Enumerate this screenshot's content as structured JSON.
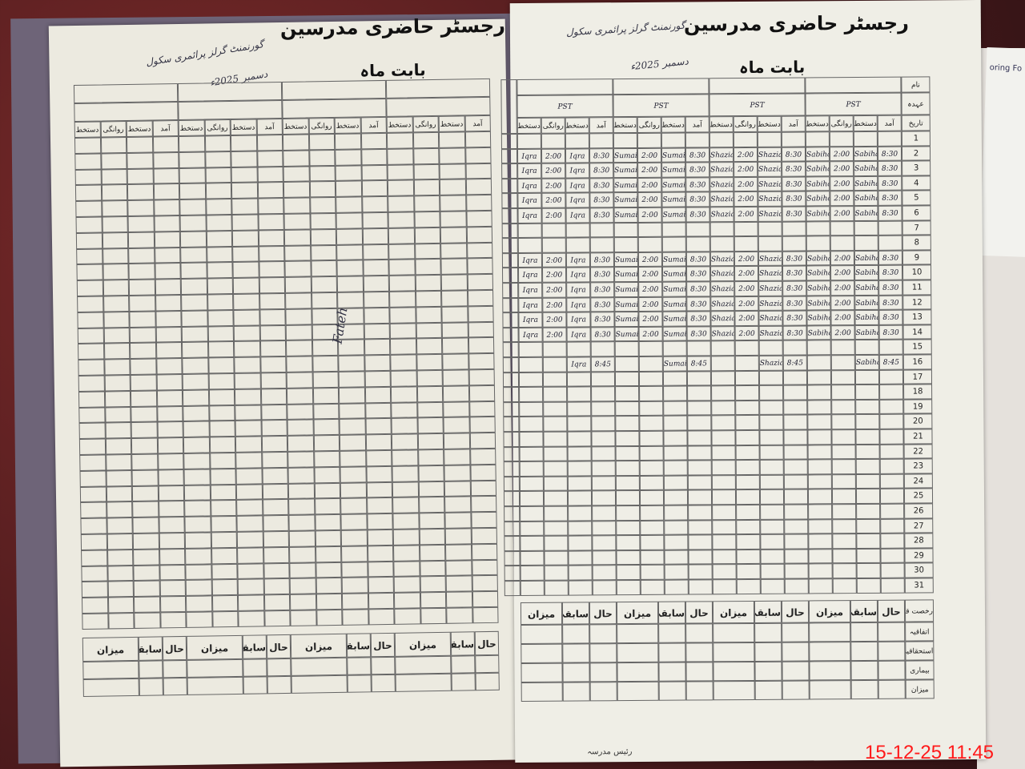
{
  "register_title": "رجسٹر حاضری مدرسین",
  "month_label": "بابت ماہ",
  "school_name_handwritten": "گورنمنٹ گرلز پرائمری سکول",
  "month_handwritten": "دسمبر 2025ء",
  "row_labels": {
    "name": "نام",
    "designation": "عہدہ",
    "date": "تاریخ"
  },
  "sub_headers": [
    "آمد",
    "دستخط",
    "روانگی",
    "دستخط"
  ],
  "teachers": [
    {
      "designation": "PST",
      "sig": "Sabiha"
    },
    {
      "designation": "PST",
      "sig": "Shazia"
    },
    {
      "designation": "PST",
      "sig": "Sumaira"
    },
    {
      "designation": "PST",
      "sig": "Iqra"
    }
  ],
  "days": [
    "1",
    "2",
    "3",
    "4",
    "5",
    "6",
    "7",
    "8",
    "9",
    "10",
    "11",
    "12",
    "13",
    "14",
    "15",
    "16",
    "17",
    "18",
    "19",
    "20",
    "21",
    "22",
    "23",
    "24",
    "25",
    "26",
    "27",
    "28",
    "29",
    "30",
    "31"
  ],
  "entries": {
    "arrival": "8:30",
    "departure": "2:00",
    "late_arrival": "8:45",
    "attended_days": [
      2,
      3,
      4,
      5,
      6,
      9,
      10,
      11,
      12,
      13,
      14
    ],
    "half_day": 16
  },
  "summary": {
    "leave_type_label": "رخصت قسم",
    "leave_types": [
      "اتفاقیہ",
      "استحقاقیہ",
      "بیماری",
      "میزان"
    ],
    "columns": [
      "حال",
      "سابقہ",
      "میزان"
    ]
  },
  "left_note": "Fateh",
  "footer": "رئیس مدرسہ",
  "side_paper_text": "oring Fo",
  "timestamp": "15-12-25  11:45"
}
